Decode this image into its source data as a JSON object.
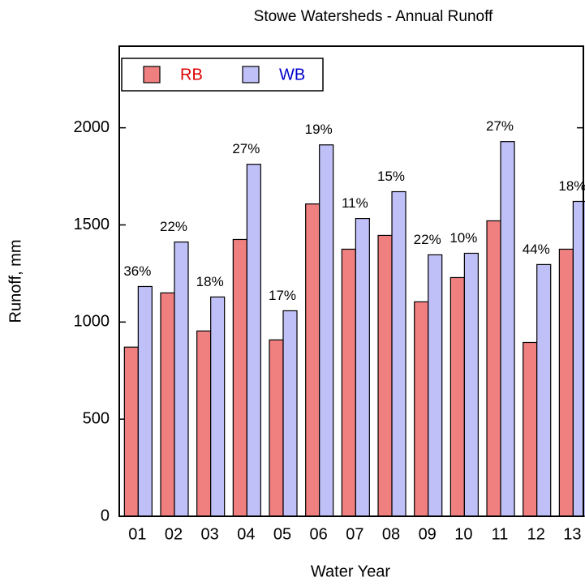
{
  "chart_data": {
    "type": "bar",
    "title": "Stowe Watersheds - Annual Runoff",
    "x_label": "Water Year",
    "y_label": "Runoff, mm",
    "categories": [
      "01",
      "02",
      "03",
      "04",
      "05",
      "06",
      "07",
      "08",
      "09",
      "10",
      "11",
      "12",
      "13"
    ],
    "series": [
      {
        "name": "RB",
        "color": "#f08080",
        "text_color": "#dd0000",
        "values": [
          871,
          1150,
          954,
          1425,
          908,
          1608,
          1375,
          1446,
          1104,
          1229,
          1521,
          895,
          1375
        ]
      },
      {
        "name": "WB",
        "color": "#c0c0f8",
        "text_color": "#0000cc",
        "values": [
          1183,
          1412,
          1129,
          1812,
          1058,
          1912,
          1533,
          1671,
          1346,
          1354,
          1929,
          1296,
          1621
        ]
      }
    ],
    "annotations": [
      "36%",
      "22%",
      "18%",
      "27%",
      "17%",
      "19%",
      "11%",
      "15%",
      "22%",
      "10%",
      "27%",
      "44%",
      "18%"
    ],
    "ylim": [
      0,
      2420
    ],
    "yticks": [
      0,
      500,
      1000,
      1500,
      2000
    ],
    "legend": "top-left",
    "grid": false
  }
}
